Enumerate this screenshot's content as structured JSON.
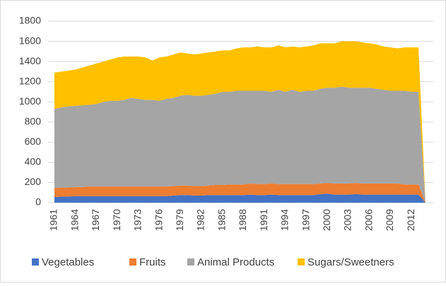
{
  "chart_data": {
    "type": "stacked_area",
    "categories": [
      "1961",
      null,
      null,
      "1964",
      null,
      null,
      "1967",
      null,
      null,
      "1970",
      null,
      null,
      "1973",
      null,
      null,
      "1976",
      null,
      null,
      "1979",
      null,
      null,
      "1982",
      null,
      null,
      "1985",
      null,
      null,
      "1988",
      null,
      null,
      "1991",
      null,
      null,
      "1994",
      null,
      null,
      "1997",
      null,
      null,
      "2000",
      null,
      null,
      "2003",
      null,
      null,
      "2006",
      null,
      null,
      "2009",
      null,
      null,
      "2012",
      null,
      null
    ],
    "series": [
      {
        "name": "Vegetables",
        "color": "#4472c4",
        "values": [
          55,
          60,
          60,
          65,
          65,
          65,
          65,
          65,
          65,
          65,
          65,
          65,
          65,
          65,
          65,
          65,
          65,
          70,
          75,
          75,
          70,
          70,
          75,
          75,
          75,
          75,
          75,
          75,
          80,
          75,
          75,
          80,
          75,
          75,
          75,
          75,
          75,
          75,
          85,
          90,
          80,
          80,
          80,
          85,
          80,
          80,
          80,
          80,
          80,
          80,
          80,
          80,
          80,
          0
        ]
      },
      {
        "name": "Fruits",
        "color": "#ed7d31",
        "values": [
          90,
          90,
          90,
          90,
          90,
          95,
          95,
          95,
          95,
          95,
          95,
          95,
          95,
          95,
          95,
          95,
          95,
          95,
          95,
          95,
          95,
          95,
          95,
          100,
          100,
          105,
          105,
          105,
          110,
          110,
          110,
          110,
          110,
          110,
          110,
          110,
          110,
          110,
          105,
          105,
          110,
          110,
          110,
          110,
          110,
          110,
          110,
          110,
          110,
          110,
          100,
          100,
          100,
          0
        ]
      },
      {
        "name": "Animal Products",
        "color": "#a5a5a5",
        "values": [
          785,
          795,
          805,
          805,
          810,
          810,
          820,
          840,
          850,
          850,
          860,
          880,
          870,
          860,
          860,
          850,
          870,
          875,
          890,
          900,
          895,
          895,
          900,
          905,
          925,
          920,
          930,
          930,
          920,
          925,
          925,
          910,
          935,
          915,
          935,
          915,
          925,
          925,
          940,
          945,
          950,
          960,
          950,
          945,
          950,
          950,
          940,
          930,
          920,
          920,
          930,
          920,
          920,
          0
        ]
      },
      {
        "name": "Sugars/Sweetners",
        "color": "#ffc000",
        "values": [
          360,
          355,
          355,
          360,
          375,
          390,
          400,
          400,
          410,
          430,
          430,
          410,
          420,
          420,
          390,
          430,
          420,
          430,
          430,
          410,
          410,
          420,
          420,
          420,
          410,
          410,
          420,
          430,
          430,
          440,
          430,
          440,
          440,
          440,
          430,
          440,
          440,
          450,
          450,
          440,
          440,
          450,
          460,
          460,
          450,
          440,
          440,
          430,
          430,
          420,
          430,
          440,
          440,
          0
        ]
      }
    ],
    "ylim": [
      0,
      1800
    ],
    "yticks": [
      0,
      200,
      400,
      600,
      800,
      1000,
      1200,
      1400,
      1600,
      1800
    ],
    "grid": true,
    "legend": "bottom"
  }
}
